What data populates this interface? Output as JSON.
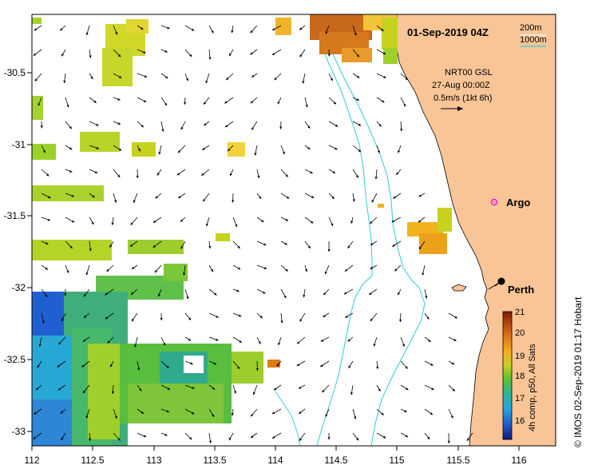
{
  "map": {
    "date_label": "01-Sep-2019 04Z",
    "contour_200": "200m",
    "contour_1000": "1000m",
    "model_name": "NRT00 GSL",
    "model_date": "27-Aug 00:00Z",
    "vector_scale": "0.5m/s (1kt 6h)",
    "credit": "© IMOS 02-Sep-2019 01:17 Hobart",
    "colorbar_label": "4h comp, p50, All Sats",
    "colorbar_ticks": [
      "21",
      "20",
      "19",
      "18",
      "17",
      "16"
    ],
    "colorbar_colors": [
      "#0a1a7a",
      "#1f5fd1",
      "#22a6e0",
      "#28b89a",
      "#5fc32a",
      "#c6d21e",
      "#f2b21c",
      "#e07a14",
      "#b84a10",
      "#7a1e0a"
    ],
    "x_ticks": [
      "112",
      "112.5",
      "113",
      "113.5",
      "114",
      "114.5",
      "115",
      "115.5",
      "116"
    ],
    "y_ticks": [
      "-30.5",
      "-31",
      "-31.5",
      "-32",
      "-32.5",
      "-33"
    ],
    "places": [
      {
        "name": "Argo",
        "marker": "circle-magenta"
      },
      {
        "name": "Perth",
        "marker": "dot-black"
      }
    ],
    "colors": {
      "land": "#f9c596",
      "isobath": "#33c9d9",
      "frame": "#000000"
    }
  }
}
